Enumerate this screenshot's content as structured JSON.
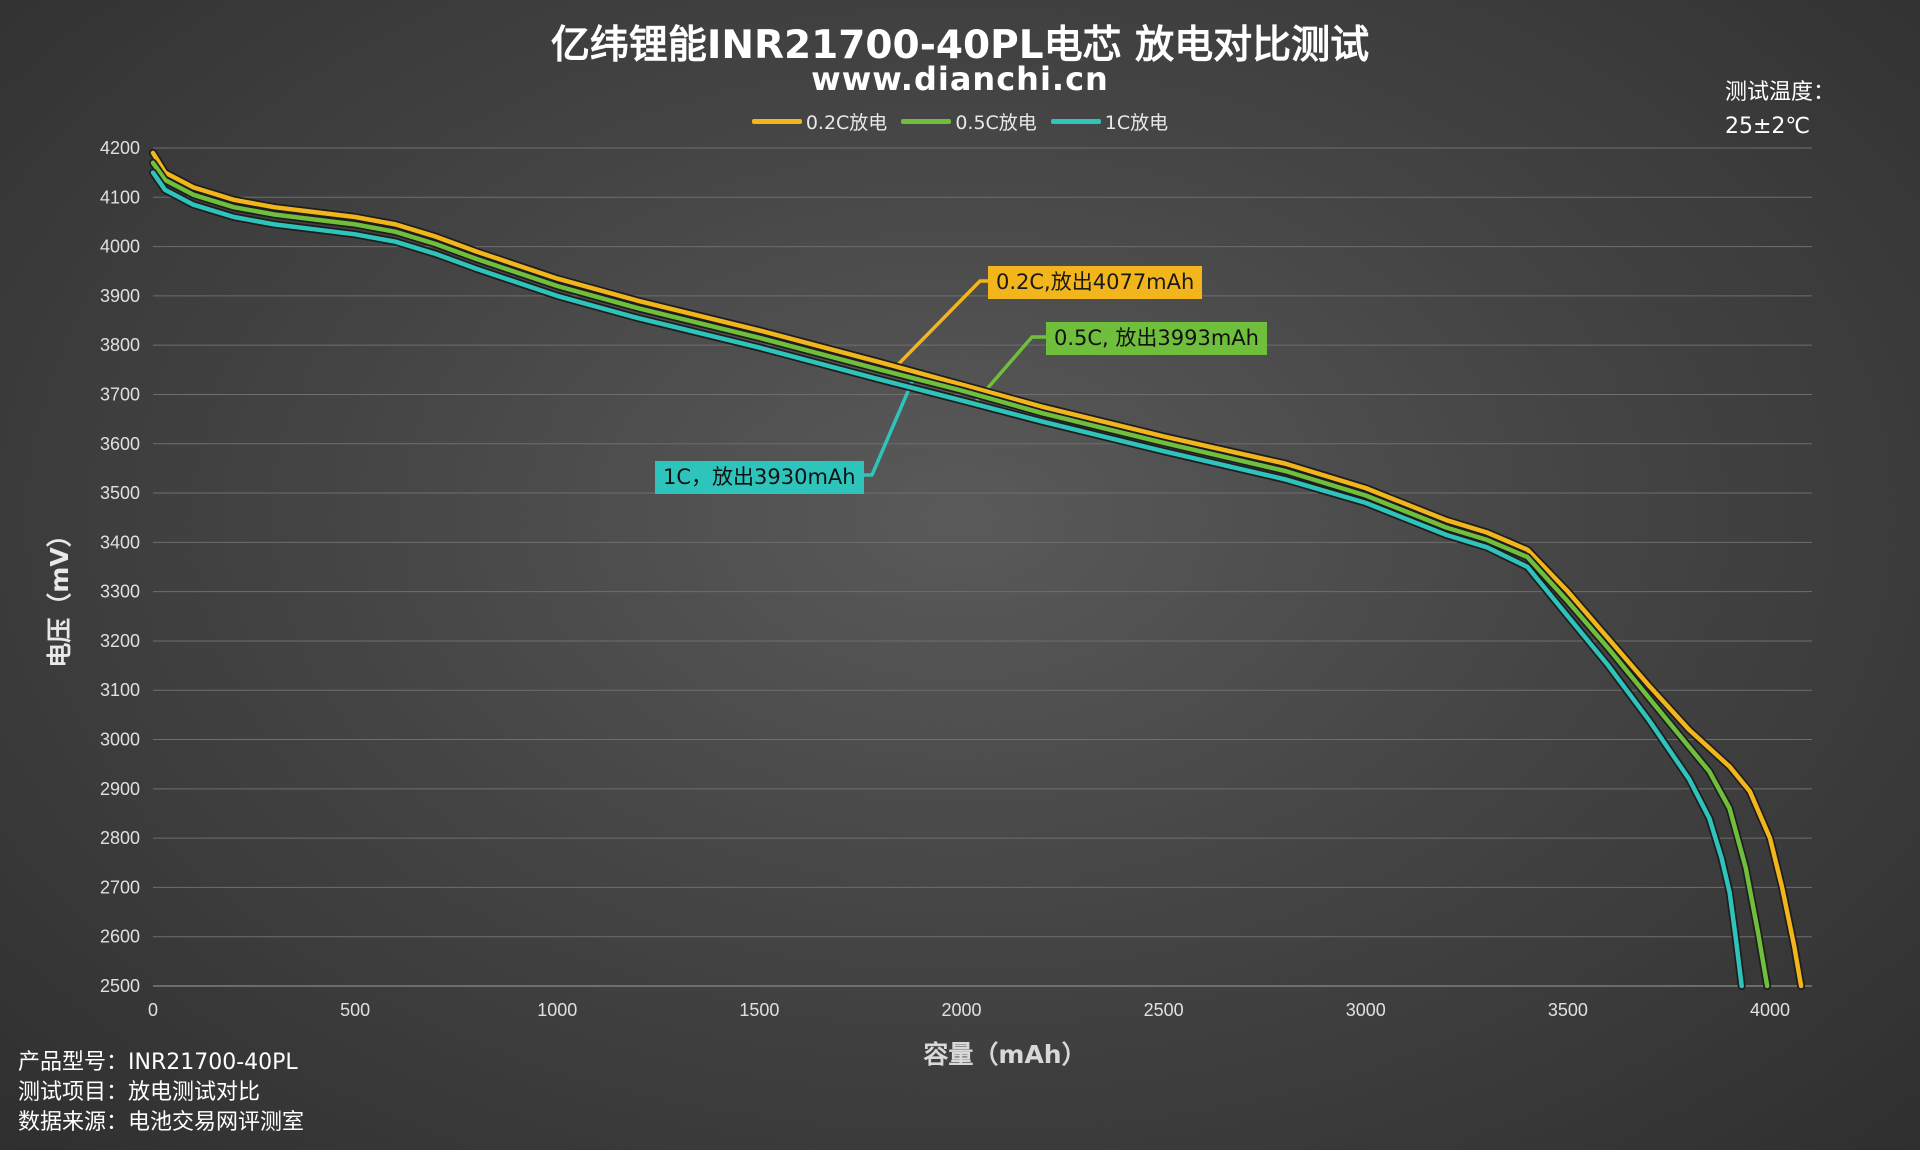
{
  "title": "亿纬锂能INR21700-40PL电芯 放电对比测试",
  "subtitle": "www.dianchi.cn",
  "temperature_note": {
    "label": "测试温度：",
    "value": "25±2℃"
  },
  "info": {
    "model": "产品型号：INR21700-40PL",
    "item": "测试项目：放电测试对比",
    "source": "数据来源：电池交易网评测室"
  },
  "callouts": {
    "c02": "0.2C,放出4077mAh",
    "c05": "0.5C, 放出3993mAh",
    "c1": "1C，放出3930mAh"
  },
  "colors": {
    "c02": "#f2b61c",
    "c05": "#6fbf3d",
    "c1": "#2ec4bc"
  },
  "chart_data": {
    "type": "line",
    "title": "亿纬锂能INR21700-40PL电芯 放电对比测试",
    "xlabel": "容量（mAh）",
    "ylabel": "电压（mV）",
    "xlim": [
      0,
      4100
    ],
    "ylim": [
      2500,
      4200
    ],
    "x_ticks": [
      0,
      500,
      1000,
      1500,
      2000,
      2500,
      3000,
      3500,
      4000
    ],
    "y_ticks": [
      2500,
      2600,
      2700,
      2800,
      2900,
      3000,
      3100,
      3200,
      3300,
      3400,
      3500,
      3600,
      3700,
      3800,
      3900,
      4000,
      4100,
      4200
    ],
    "grid": "horizontal",
    "legend_position": "top-center",
    "series": [
      {
        "name": "0.2C放电",
        "color": "#f2b61c",
        "x": [
          0,
          30,
          100,
          200,
          300,
          400,
          500,
          600,
          700,
          800,
          1000,
          1200,
          1500,
          1800,
          2000,
          2200,
          2500,
          2800,
          3000,
          3200,
          3300,
          3400,
          3500,
          3600,
          3700,
          3800,
          3900,
          3950,
          4000,
          4030,
          4060,
          4077
        ],
        "y": [
          4190,
          4150,
          4120,
          4095,
          4080,
          4070,
          4060,
          4045,
          4020,
          3990,
          3935,
          3890,
          3830,
          3765,
          3720,
          3675,
          3615,
          3560,
          3510,
          3445,
          3420,
          3385,
          3300,
          3205,
          3110,
          3020,
          2945,
          2895,
          2800,
          2700,
          2580,
          2500
        ]
      },
      {
        "name": "0.5C放电",
        "color": "#6fbf3d",
        "x": [
          0,
          30,
          100,
          200,
          300,
          400,
          500,
          600,
          700,
          800,
          1000,
          1200,
          1500,
          1800,
          2000,
          2200,
          2500,
          2800,
          3000,
          3200,
          3300,
          3400,
          3500,
          3600,
          3700,
          3800,
          3850,
          3900,
          3940,
          3970,
          3993
        ],
        "y": [
          4170,
          4135,
          4105,
          4080,
          4065,
          4055,
          4045,
          4030,
          4005,
          3975,
          3920,
          3875,
          3815,
          3750,
          3708,
          3662,
          3602,
          3545,
          3495,
          3430,
          3405,
          3370,
          3280,
          3185,
          3085,
          2985,
          2935,
          2860,
          2740,
          2610,
          2500
        ]
      },
      {
        "name": "1C放电",
        "color": "#2ec4bc",
        "x": [
          0,
          30,
          100,
          200,
          300,
          400,
          500,
          600,
          700,
          800,
          1000,
          1200,
          1500,
          1800,
          2000,
          2200,
          2500,
          2800,
          3000,
          3200,
          3300,
          3400,
          3500,
          3600,
          3700,
          3800,
          3850,
          3880,
          3900,
          3915,
          3930
        ],
        "y": [
          4150,
          4115,
          4085,
          4060,
          4045,
          4035,
          4025,
          4010,
          3985,
          3955,
          3900,
          3855,
          3795,
          3730,
          3688,
          3645,
          3585,
          3528,
          3480,
          3415,
          3390,
          3350,
          3250,
          3150,
          3040,
          2920,
          2840,
          2760,
          2690,
          2600,
          2500
        ]
      }
    ]
  }
}
